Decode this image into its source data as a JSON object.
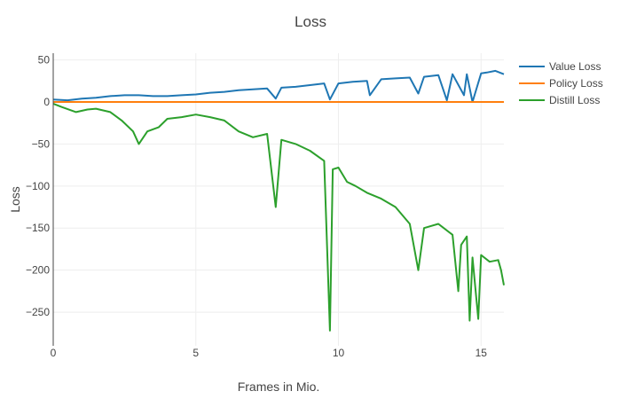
{
  "chart_data": {
    "type": "line",
    "title": "Loss",
    "xlabel": "Frames in Mio.",
    "ylabel": "Loss",
    "xlim": [
      0,
      15.8
    ],
    "ylim": [
      -290,
      58
    ],
    "x_ticks": [
      0,
      5,
      10,
      15
    ],
    "y_ticks": [
      50,
      0,
      -50,
      -100,
      -150,
      -200,
      -250
    ],
    "x_tick_labels": [
      "0",
      "5",
      "10",
      "15"
    ],
    "y_tick_labels": [
      "50",
      "0",
      "−50",
      "−100",
      "−150",
      "−200",
      "−250"
    ],
    "grid": true,
    "legend_position": "top-right",
    "series": [
      {
        "name": "Value Loss",
        "color": "#1f77b4",
        "points": [
          [
            0,
            3
          ],
          [
            0.5,
            2
          ],
          [
            1,
            4
          ],
          [
            1.5,
            5
          ],
          [
            2,
            7
          ],
          [
            2.5,
            8
          ],
          [
            3,
            8
          ],
          [
            3.5,
            7
          ],
          [
            4,
            7
          ],
          [
            4.5,
            8
          ],
          [
            5,
            9
          ],
          [
            5.5,
            11
          ],
          [
            6,
            12
          ],
          [
            6.5,
            14
          ],
          [
            7,
            15
          ],
          [
            7.5,
            16
          ],
          [
            7.8,
            4
          ],
          [
            8,
            17
          ],
          [
            8.5,
            18
          ],
          [
            9,
            20
          ],
          [
            9.5,
            22
          ],
          [
            9.7,
            3
          ],
          [
            10,
            22
          ],
          [
            10.5,
            24
          ],
          [
            11,
            25
          ],
          [
            11.1,
            8
          ],
          [
            11.5,
            27
          ],
          [
            12,
            28
          ],
          [
            12.5,
            29
          ],
          [
            12.8,
            10
          ],
          [
            13,
            30
          ],
          [
            13.5,
            32
          ],
          [
            13.8,
            2
          ],
          [
            14,
            33
          ],
          [
            14.4,
            8
          ],
          [
            14.5,
            33
          ],
          [
            14.7,
            0
          ],
          [
            15,
            34
          ],
          [
            15.2,
            35
          ],
          [
            15.5,
            37
          ],
          [
            15.8,
            33
          ]
        ]
      },
      {
        "name": "Policy Loss",
        "color": "#ff7f0e",
        "points": [
          [
            0,
            0
          ],
          [
            15.8,
            0
          ]
        ]
      },
      {
        "name": "Distill Loss",
        "color": "#2ca02c",
        "points": [
          [
            0,
            -2
          ],
          [
            0.3,
            -6
          ],
          [
            0.8,
            -12
          ],
          [
            1.2,
            -9
          ],
          [
            1.5,
            -8
          ],
          [
            2,
            -12
          ],
          [
            2.4,
            -22
          ],
          [
            2.8,
            -35
          ],
          [
            3,
            -50
          ],
          [
            3.3,
            -35
          ],
          [
            3.7,
            -30
          ],
          [
            4,
            -20
          ],
          [
            4.5,
            -18
          ],
          [
            5,
            -15
          ],
          [
            5.5,
            -18
          ],
          [
            6,
            -22
          ],
          [
            6.5,
            -35
          ],
          [
            7,
            -42
          ],
          [
            7.5,
            -38
          ],
          [
            7.8,
            -125
          ],
          [
            8,
            -45
          ],
          [
            8.5,
            -50
          ],
          [
            9,
            -58
          ],
          [
            9.5,
            -70
          ],
          [
            9.7,
            -272
          ],
          [
            9.8,
            -80
          ],
          [
            10,
            -78
          ],
          [
            10.3,
            -95
          ],
          [
            10.6,
            -100
          ],
          [
            11,
            -108
          ],
          [
            11.5,
            -115
          ],
          [
            12,
            -125
          ],
          [
            12.5,
            -145
          ],
          [
            12.8,
            -200
          ],
          [
            13,
            -150
          ],
          [
            13.5,
            -145
          ],
          [
            14,
            -158
          ],
          [
            14.2,
            -225
          ],
          [
            14.3,
            -170
          ],
          [
            14.5,
            -160
          ],
          [
            14.6,
            -260
          ],
          [
            14.7,
            -185
          ],
          [
            14.9,
            -258
          ],
          [
            15,
            -182
          ],
          [
            15.3,
            -190
          ],
          [
            15.6,
            -188
          ],
          [
            15.7,
            -200
          ],
          [
            15.8,
            -218
          ]
        ]
      }
    ]
  }
}
